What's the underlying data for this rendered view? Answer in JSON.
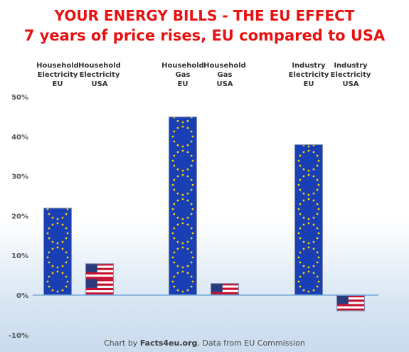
{
  "header": {
    "title": "YOUR ENERGY BILLS - THE EU EFFECT",
    "subtitle": "7 years of price rises, EU compared to USA"
  },
  "footer": {
    "prefix": "Chart by ",
    "brand": "Facts4eu.org",
    "suffix": ", Data from EU Commission"
  },
  "colors": {
    "title": "#e81010",
    "eu_blue": "#1a3fb5",
    "eu_star": "#f5d400",
    "us_red": "#c8102e",
    "us_blue": "#2a3a7c",
    "zero_line": "#5b9bd5"
  },
  "chart_data": {
    "type": "bar",
    "categories": [
      "Household\nElectricity\nEU",
      "Household\nElectricity\nUSA",
      "Household\nGas\nEU",
      "Household\nGas\nUSA",
      "Industry\nElectricity\nEU",
      "Industry\nElectricity\nUSA"
    ],
    "values": [
      22,
      8,
      45,
      3,
      38,
      -4
    ],
    "bar_style": [
      "eu-flag",
      "us-flag",
      "eu-flag",
      "us-flag",
      "eu-flag",
      "us-flag"
    ],
    "ylim": [
      -10,
      50
    ],
    "yticks": [
      -10,
      0,
      10,
      20,
      30,
      40,
      50
    ],
    "ytick_labels": [
      "-10%",
      "0%",
      "10%",
      "20%",
      "30%",
      "40%",
      "50%"
    ],
    "grid": false,
    "legend": "none",
    "xlabel": "",
    "ylabel": ""
  }
}
